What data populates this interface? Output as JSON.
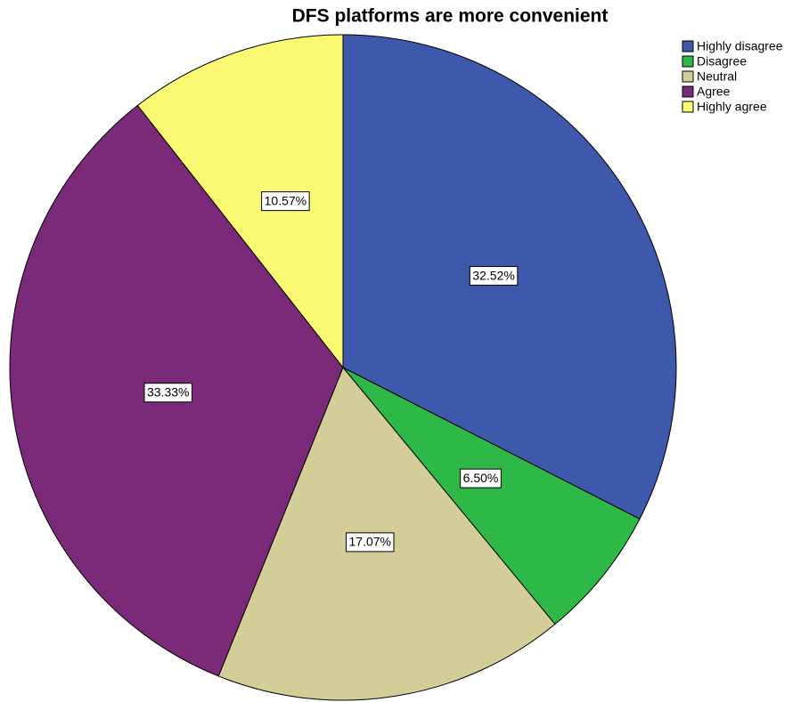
{
  "chart_data": {
    "type": "pie",
    "title": "DFS platforms are more convenient",
    "categories": [
      "Highly disagree",
      "Disagree",
      "Neutral",
      "Agree",
      "Highly agree"
    ],
    "values": [
      32.52,
      6.5,
      17.07,
      33.33,
      10.57
    ],
    "value_labels": [
      "32.52%",
      "6.50%",
      "17.07%",
      "33.33%",
      "10.57%"
    ],
    "colors": [
      "#3e58ac",
      "#2eb848",
      "#d3ce97",
      "#7b2a7a",
      "#fbf873"
    ],
    "legend": "top-right"
  }
}
